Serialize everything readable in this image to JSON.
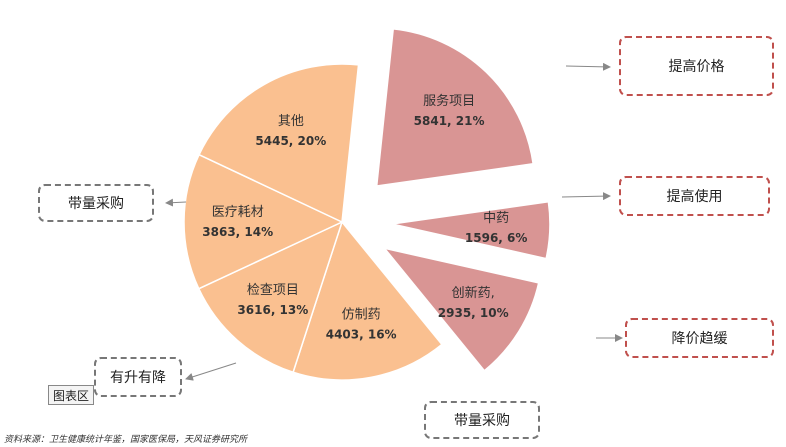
{
  "chart_data": {
    "type": "pie",
    "slices": [
      {
        "label": "服务项目",
        "value": 5841,
        "pct": "21%",
        "color": "#d99594",
        "exploded": true
      },
      {
        "label": "中药",
        "value": 1596,
        "pct": "6%",
        "color": "#d99594",
        "exploded": true
      },
      {
        "label": "创新药,",
        "value": 2935,
        "pct": "10%",
        "color": "#d99594",
        "exploded": true
      },
      {
        "label": "仿制药",
        "value": 4403,
        "pct": "16%",
        "color": "#fac090",
        "exploded": false
      },
      {
        "label": "检查项目",
        "value": 3616,
        "pct": "13%",
        "color": "#fac090",
        "exploded": false
      },
      {
        "label": "医疗耗材",
        "value": 3863,
        "pct": "14%",
        "color": "#fac090",
        "exploded": false
      },
      {
        "label": "其他",
        "value": 5445,
        "pct": "20%",
        "color": "#fac090",
        "exploded": false
      }
    ],
    "legend": "none"
  },
  "callouts": {
    "raise_price": "提高价格",
    "raise_use": "提高使用",
    "price_slowdown": "降价趋缓",
    "bulk_purchase_left": "带量采购",
    "bulk_purchase_bottom": "带量采购",
    "up_and_down": "有升有降"
  },
  "chart_area_tag": "图表区",
  "source": "资料来源：卫生健康统计年鉴，国家医保局，天风证券研究所",
  "colors": {
    "exploded": "#d99594",
    "base": "#fac090",
    "slice_border": "#ffffff",
    "callout_red": "#c0504d",
    "callout_grey": "#777777",
    "arrow": "#888888"
  }
}
